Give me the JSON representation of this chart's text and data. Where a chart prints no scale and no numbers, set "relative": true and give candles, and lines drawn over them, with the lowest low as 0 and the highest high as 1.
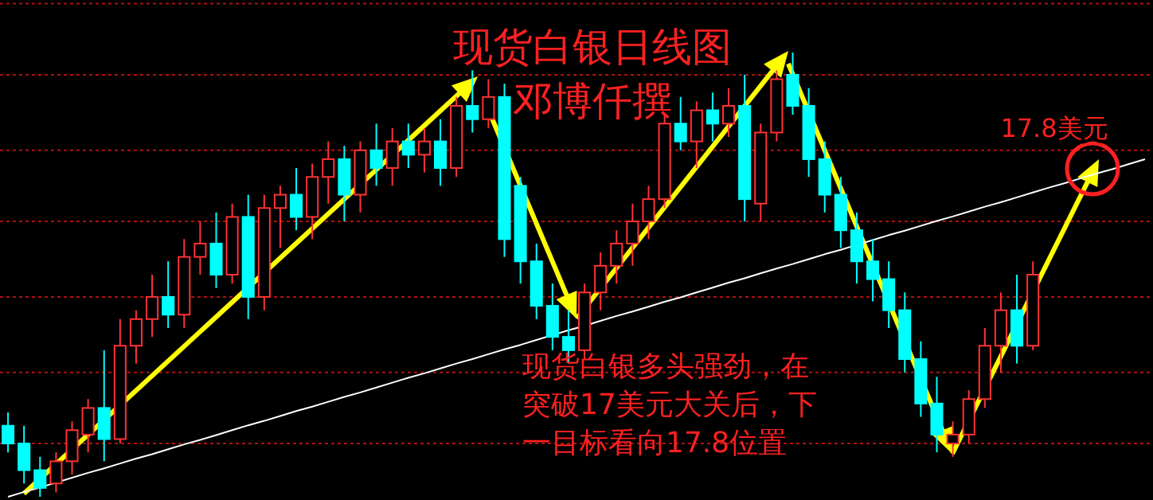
{
  "chart_data": {
    "type": "candlestick",
    "title": "现货白银日线图",
    "subtitle": "邓博仟撰",
    "relative": true,
    "ref_lines": [
      {
        "axis": "y",
        "value": 1.11,
        "color": "#b01010",
        "line_style": "dotted"
      },
      {
        "axis": "y",
        "value": 0.95,
        "color": "#b01010",
        "line_style": "dotted"
      },
      {
        "axis": "y",
        "value": 0.78,
        "color": "#b01010",
        "line_style": "dotted"
      },
      {
        "axis": "y",
        "value": 0.62,
        "color": "#b01010",
        "line_style": "dotted"
      },
      {
        "axis": "y",
        "value": 0.45,
        "color": "#b01010",
        "line_style": "dotted"
      },
      {
        "axis": "y",
        "value": 0.28,
        "color": "#b01010",
        "line_style": "dotted"
      },
      {
        "axis": "y",
        "value": 0.12,
        "color": "#b01010",
        "line_style": "dotted"
      }
    ],
    "annotations": [
      "17.8美元",
      "现货白银多头强劲，在突破17美元大关后，下一目标看向17.8位置"
    ],
    "categories": [
      null,
      null,
      null,
      null,
      null,
      null,
      null,
      null,
      null,
      null,
      null,
      null,
      null,
      null,
      null,
      null,
      null,
      null,
      null,
      null,
      null,
      null,
      null,
      null,
      null,
      null,
      null,
      null,
      null,
      null,
      null,
      null,
      null,
      null,
      null,
      null,
      null,
      null,
      null,
      null,
      null,
      null,
      null,
      null,
      null,
      null,
      null,
      null,
      null,
      null,
      null,
      null,
      null,
      null,
      null,
      null,
      null,
      null,
      null,
      null,
      null,
      null,
      null,
      null,
      null,
      null,
      null,
      null,
      null,
      null,
      null,
      null
    ],
    "ohlc": [
      [
        0.16,
        0.19,
        0.1,
        0.12
      ],
      [
        0.12,
        0.16,
        0.03,
        0.06
      ],
      [
        0.06,
        0.09,
        0.0,
        0.02
      ],
      [
        0.03,
        0.1,
        0.01,
        0.08
      ],
      [
        0.08,
        0.17,
        0.05,
        0.15
      ],
      [
        0.14,
        0.22,
        0.1,
        0.2
      ],
      [
        0.2,
        0.33,
        0.08,
        0.13
      ],
      [
        0.13,
        0.4,
        0.12,
        0.34
      ],
      [
        0.34,
        0.42,
        0.3,
        0.4
      ],
      [
        0.4,
        0.5,
        0.36,
        0.45
      ],
      [
        0.45,
        0.53,
        0.38,
        0.41
      ],
      [
        0.41,
        0.58,
        0.38,
        0.54
      ],
      [
        0.54,
        0.62,
        0.5,
        0.57
      ],
      [
        0.57,
        0.64,
        0.47,
        0.5
      ],
      [
        0.5,
        0.66,
        0.48,
        0.63
      ],
      [
        0.63,
        0.68,
        0.4,
        0.45
      ],
      [
        0.45,
        0.68,
        0.42,
        0.65
      ],
      [
        0.65,
        0.7,
        0.56,
        0.68
      ],
      [
        0.68,
        0.74,
        0.6,
        0.63
      ],
      [
        0.63,
        0.75,
        0.58,
        0.72
      ],
      [
        0.72,
        0.8,
        0.66,
        0.76
      ],
      [
        0.76,
        0.79,
        0.62,
        0.68
      ],
      [
        0.68,
        0.8,
        0.64,
        0.78
      ],
      [
        0.78,
        0.84,
        0.7,
        0.74
      ],
      [
        0.74,
        0.83,
        0.7,
        0.8
      ],
      [
        0.8,
        0.84,
        0.74,
        0.77
      ],
      [
        0.77,
        0.83,
        0.73,
        0.8
      ],
      [
        0.8,
        0.85,
        0.7,
        0.74
      ],
      [
        0.74,
        0.9,
        0.72,
        0.88
      ],
      [
        0.88,
        0.96,
        0.82,
        0.85
      ],
      [
        0.85,
        0.94,
        0.83,
        0.9
      ],
      [
        0.9,
        0.93,
        0.54,
        0.58
      ],
      [
        0.7,
        0.72,
        0.48,
        0.53
      ],
      [
        0.53,
        0.57,
        0.4,
        0.43
      ],
      [
        0.43,
        0.48,
        0.33,
        0.36
      ],
      [
        0.36,
        0.42,
        0.3,
        0.33
      ],
      [
        0.33,
        0.48,
        0.31,
        0.46
      ],
      [
        0.46,
        0.55,
        0.42,
        0.52
      ],
      [
        0.52,
        0.6,
        0.48,
        0.57
      ],
      [
        0.57,
        0.66,
        0.52,
        0.62
      ],
      [
        0.62,
        0.7,
        0.58,
        0.67
      ],
      [
        0.67,
        0.86,
        0.65,
        0.84
      ],
      [
        0.84,
        0.9,
        0.78,
        0.8
      ],
      [
        0.8,
        0.89,
        0.74,
        0.87
      ],
      [
        0.87,
        0.91,
        0.8,
        0.84
      ],
      [
        0.84,
        0.92,
        0.81,
        0.88
      ],
      [
        0.88,
        0.95,
        0.62,
        0.67
      ],
      [
        0.66,
        0.84,
        0.62,
        0.82
      ],
      [
        0.82,
        0.96,
        0.8,
        0.94
      ],
      [
        0.95,
        1.0,
        0.86,
        0.88
      ],
      [
        0.88,
        0.92,
        0.72,
        0.76
      ],
      [
        0.76,
        0.8,
        0.64,
        0.68
      ],
      [
        0.68,
        0.72,
        0.56,
        0.6
      ],
      [
        0.6,
        0.64,
        0.48,
        0.53
      ],
      [
        0.53,
        0.58,
        0.44,
        0.49
      ],
      [
        0.49,
        0.53,
        0.38,
        0.42
      ],
      [
        0.42,
        0.46,
        0.28,
        0.31
      ],
      [
        0.31,
        0.35,
        0.18,
        0.21
      ],
      [
        0.21,
        0.27,
        0.1,
        0.14
      ],
      [
        0.12,
        0.17,
        0.09,
        0.14
      ],
      [
        0.14,
        0.24,
        0.12,
        0.22
      ],
      [
        0.22,
        0.38,
        0.2,
        0.34
      ],
      [
        0.34,
        0.46,
        0.28,
        0.42
      ],
      [
        0.42,
        0.5,
        0.3,
        0.34
      ],
      [
        0.34,
        0.53,
        0.33,
        0.5
      ],
      null,
      null,
      null,
      null,
      null,
      null,
      null
    ],
    "series": [
      {
        "type": "line",
        "color": "#ffffff",
        "values": [
          0,
          0.011,
          0.021,
          0.032,
          0.043,
          0.054,
          0.064,
          0.075,
          0.086,
          0.096,
          0.107,
          0.118,
          0.128,
          0.139,
          0.15,
          0.161,
          0.171,
          0.182,
          0.193,
          0.203,
          0.214,
          0.225,
          0.235,
          0.246,
          0.257,
          0.268,
          0.278,
          0.289,
          0.3,
          0.31,
          0.321,
          0.332,
          0.342,
          0.353,
          0.364,
          0.375,
          0.385,
          0.396,
          0.407,
          0.417,
          0.428,
          0.439,
          0.449,
          0.46,
          0.471,
          0.482,
          0.492,
          0.503,
          0.514,
          0.524,
          0.535,
          0.546,
          0.556,
          0.567,
          0.578,
          0.589,
          0.599,
          0.61,
          0.621,
          0.631,
          0.642,
          0.653,
          0.663,
          0.674,
          0.685,
          0.696,
          0.706,
          0.717,
          0.728,
          0.738,
          0.749,
          0.76
        ]
      }
    ]
  }
}
